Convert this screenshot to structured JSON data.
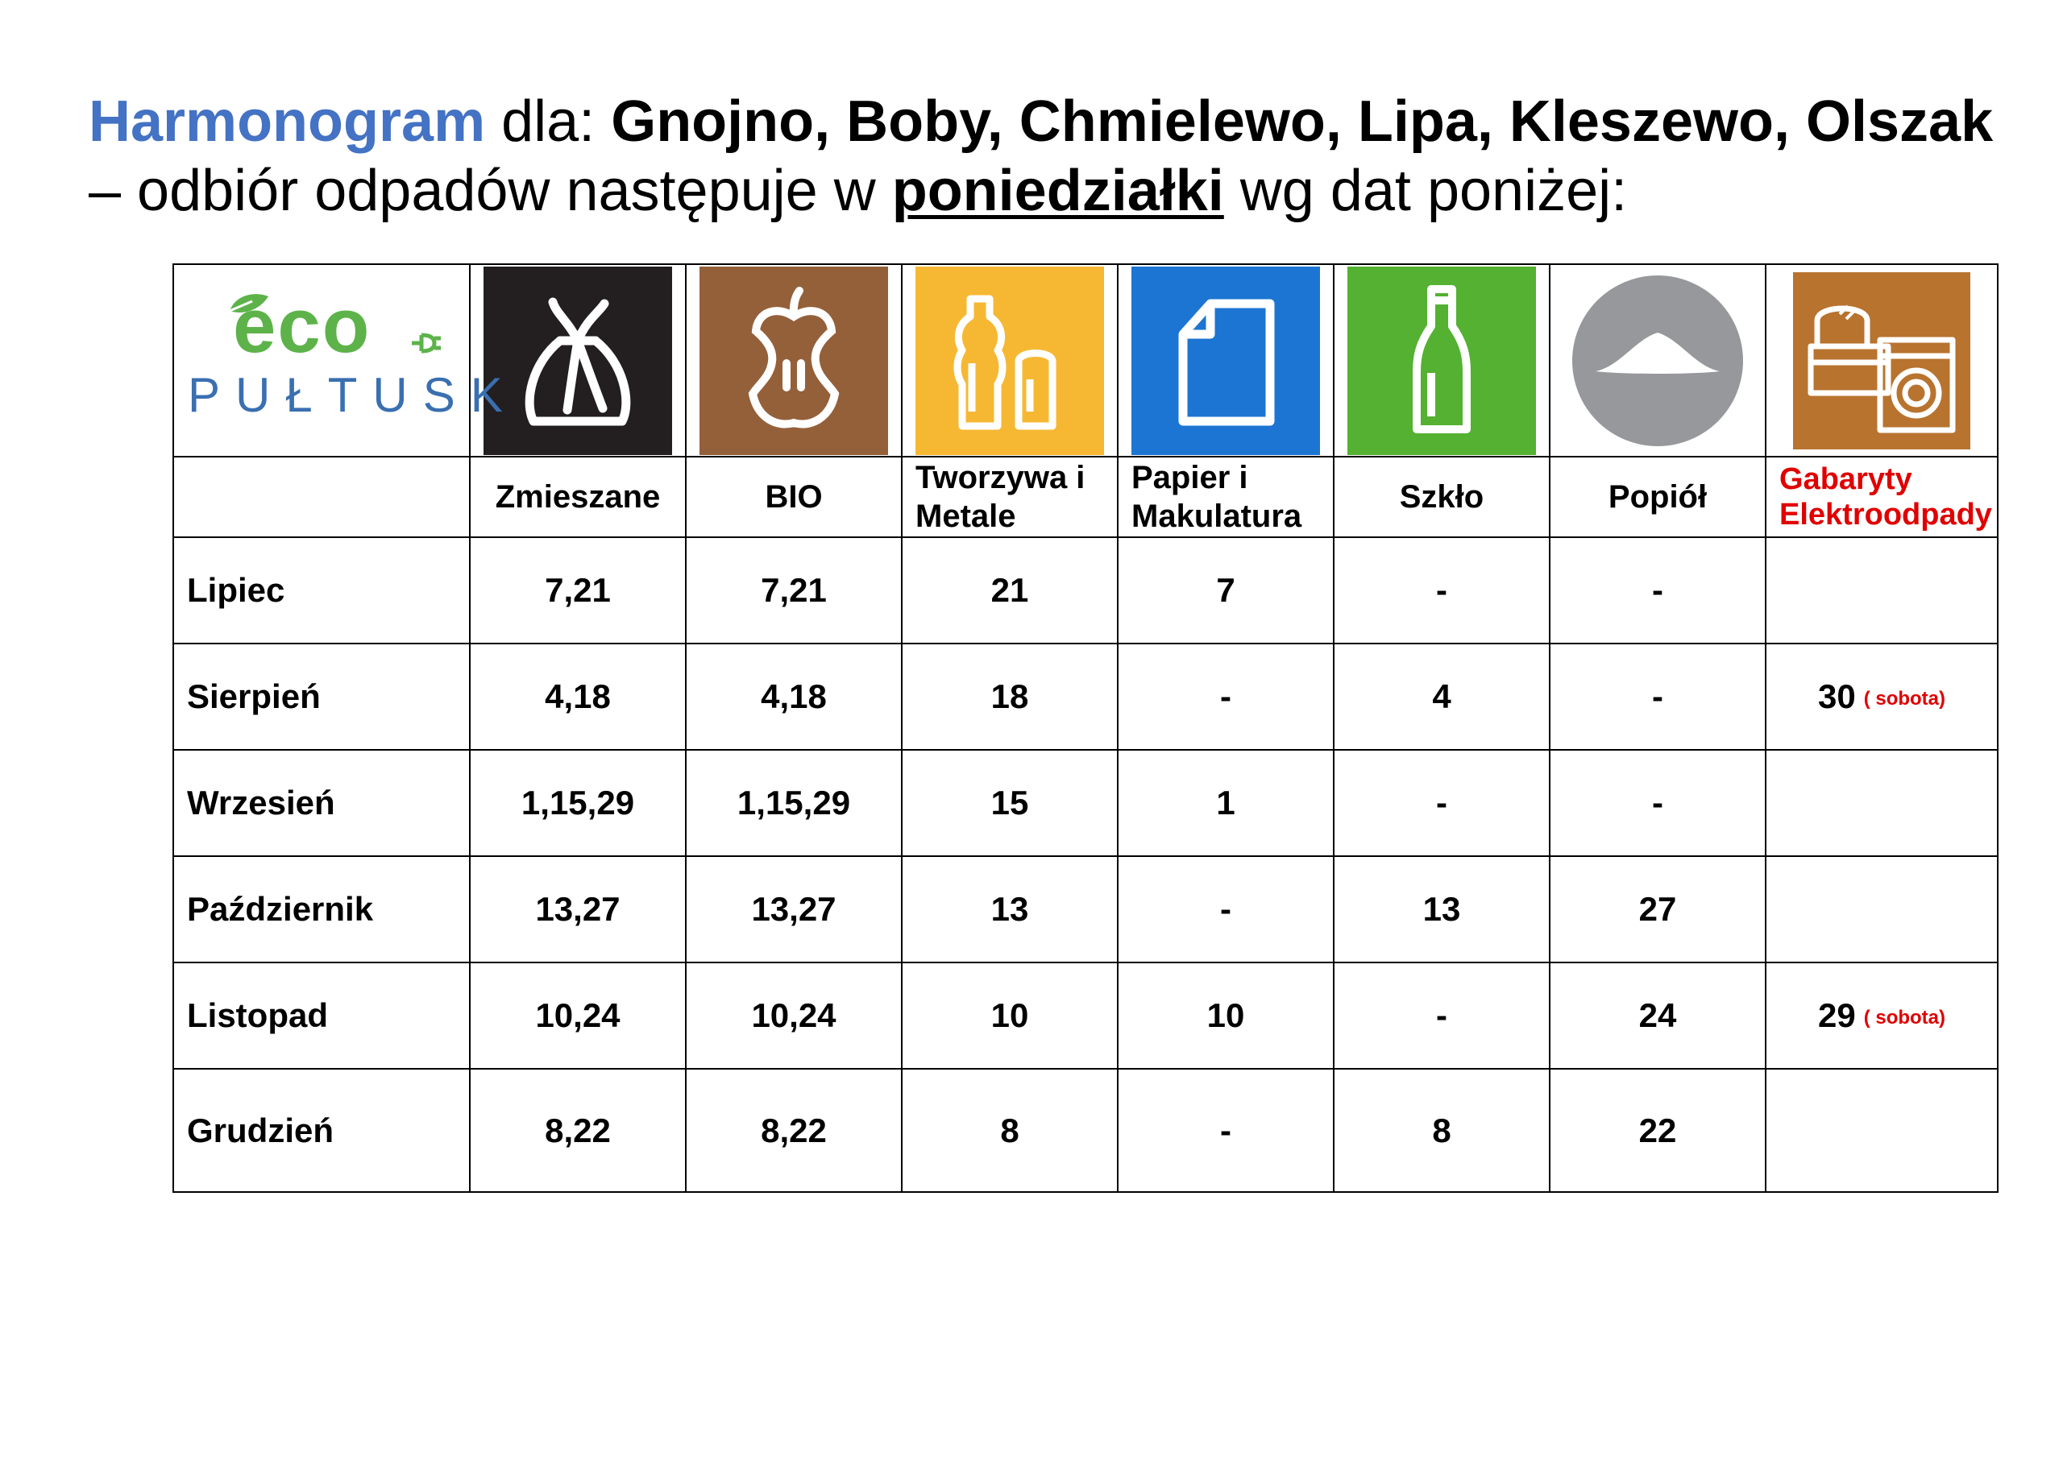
{
  "heading": {
    "part1": "Harmonogram",
    "part2": " dla: ",
    "part3": "Gnojno, Boby, Chmielewo, Lipa, Kleszewo, Olszak",
    "part4": "  – odbiór odpadów następuje w ",
    "part5": "poniedziałki",
    "part6": " wg dat poniżej:"
  },
  "logo": {
    "eco": "eco",
    "city": "PUŁTUSK"
  },
  "columns": [
    {
      "label": "Zmieszane",
      "icon": "trash-bag-icon",
      "color": "#231f20"
    },
    {
      "label": "BIO",
      "icon": "apple-core-icon",
      "color": "#94603a"
    },
    {
      "label": "Tworzywa i Metale",
      "icon": "bottle-can-icon",
      "color": "#f6b833"
    },
    {
      "label": "Papier i Makulatura",
      "icon": "paper-sheet-icon",
      "color": "#1c75d2"
    },
    {
      "label": "Szkło",
      "icon": "glass-bottle-icon",
      "color": "#54b131"
    },
    {
      "label": "Popiół",
      "icon": "ash-pile-icon",
      "color": "#97989b"
    },
    {
      "label": "Gabaryty Elektroodpady",
      "icon": "furniture-washer-icon",
      "color": "#b8732f"
    }
  ],
  "rows": [
    {
      "month": "Lipiec",
      "values": [
        "7,21",
        "7,21",
        "21",
        "7",
        "-",
        "-",
        ""
      ],
      "note": ""
    },
    {
      "month": "Sierpień",
      "values": [
        "4,18",
        "4,18",
        "18",
        "-",
        "4",
        "-",
        "30"
      ],
      "note": "( sobota)"
    },
    {
      "month": "Wrzesień",
      "values": [
        "1,15,29",
        "1,15,29",
        "15",
        "1",
        "-",
        "-",
        ""
      ],
      "note": ""
    },
    {
      "month": "Październik",
      "values": [
        "13,27",
        "13,27",
        "13",
        "-",
        "13",
        "27",
        ""
      ],
      "note": ""
    },
    {
      "month": "Listopad",
      "values": [
        "10,24",
        "10,24",
        "10",
        "10",
        "-",
        "24",
        "29"
      ],
      "note": "( sobota)"
    },
    {
      "month": "Grudzień",
      "values": [
        "8,22",
        "8,22",
        "8",
        "-",
        "8",
        "22",
        ""
      ],
      "note": ""
    }
  ]
}
